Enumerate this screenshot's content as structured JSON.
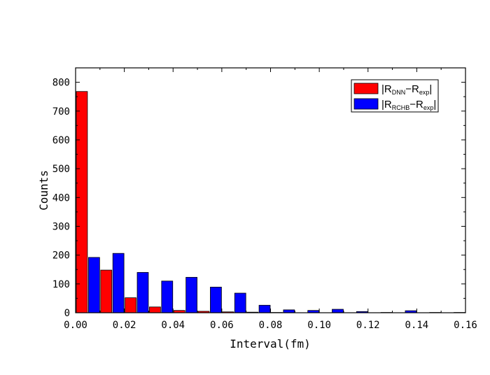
{
  "chart_data": {
    "type": "bar",
    "xlabel": "Interval(fm)",
    "ylabel": "Counts",
    "xlim": [
      0.0,
      0.16
    ],
    "ylim": [
      0,
      850
    ],
    "xticks": [
      "0.00",
      "0.02",
      "0.04",
      "0.06",
      "0.08",
      "0.10",
      "0.12",
      "0.14",
      "0.16"
    ],
    "yticks": [
      "0",
      "100",
      "200",
      "300",
      "400",
      "500",
      "600",
      "700",
      "800"
    ],
    "bin_width": 0.01,
    "bin_starts": [
      0.0,
      0.01,
      0.02,
      0.03,
      0.04,
      0.05,
      0.06,
      0.07,
      0.08,
      0.09,
      0.1,
      0.11,
      0.12,
      0.13,
      0.14,
      0.15
    ],
    "legend_position": "top-right",
    "series": [
      {
        "legend_main": "R",
        "legend_sub1": "DNN",
        "legend_sub2": "exp",
        "color": "#ff0000",
        "values": [
          768,
          148,
          52,
          20,
          8,
          5,
          3,
          2,
          1,
          0,
          0,
          0,
          0,
          0,
          0,
          0
        ]
      },
      {
        "legend_main": "R",
        "legend_sub1": "RCHB",
        "legend_sub2": "exp",
        "color": "#0000ff",
        "values": [
          192,
          206,
          140,
          110,
          123,
          89,
          68,
          26,
          10,
          8,
          12,
          4,
          1,
          7,
          1,
          1
        ]
      }
    ]
  }
}
